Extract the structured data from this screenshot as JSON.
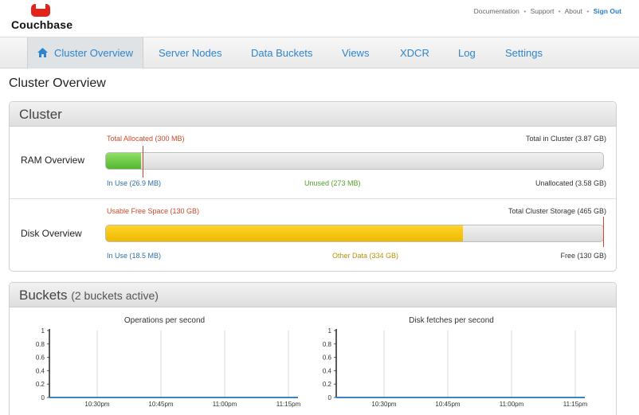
{
  "header": {
    "brand": "Couchbase",
    "links": [
      "Documentation",
      "Support",
      "About"
    ],
    "separator": "•",
    "sign_out": "Sign Out"
  },
  "nav": {
    "items": [
      "Cluster Overview",
      "Server Nodes",
      "Data Buckets",
      "Views",
      "XDCR",
      "Log",
      "Settings"
    ],
    "active": "Cluster Overview"
  },
  "page_title": "Cluster Overview",
  "cluster": {
    "title": "Cluster",
    "ram": {
      "label": "RAM Overview",
      "total_allocated": "Total Allocated (300 MB)",
      "total_in_cluster": "Total in Cluster (3.87 GB)",
      "in_use": "In Use (26.9 MB)",
      "unused": "Unused (273 MB)",
      "unallocated": "Unallocated (3.58 GB)",
      "in_use_fraction": 0.07,
      "allocated_fraction": 0.075
    },
    "disk": {
      "label": "Disk Overview",
      "usable_free": "Usable Free Space (130 GB)",
      "total_storage": "Total Cluster Storage (465 GB)",
      "in_use": "In Use (18.5 MB)",
      "other_data": "Other Data (334 GB)",
      "free": "Free (130 GB)",
      "used_fraction": 0.718,
      "marker_fraction": 0.998
    }
  },
  "buckets": {
    "title": "Buckets",
    "subtitle": "(2 buckets active)"
  },
  "colors": {
    "link": "#2f84cc",
    "ram_fill": "#55b62f",
    "disk_fill": "#f0b800",
    "marker": "#c84a2a",
    "series": "#3a83c4"
  },
  "chart_data": [
    {
      "type": "line",
      "title": "Operations per second",
      "x": [
        "10:30pm",
        "10:45pm",
        "11:00pm",
        "11:15pm"
      ],
      "series": [
        {
          "values": [
            0,
            0,
            0,
            0
          ]
        }
      ],
      "yticks": [
        "1",
        "0.8",
        "0.6",
        "0.4",
        "0.2",
        "0"
      ],
      "ylim": [
        0,
        1
      ],
      "grid": true
    },
    {
      "type": "line",
      "title": "Disk fetches per second",
      "x": [
        "10:30pm",
        "10:45pm",
        "11:00pm",
        "11:15pm"
      ],
      "series": [
        {
          "values": [
            0,
            0,
            0,
            0
          ]
        }
      ],
      "yticks": [
        "1",
        "0.8",
        "0.6",
        "0.4",
        "0.2",
        "0"
      ],
      "ylim": [
        0,
        1
      ],
      "grid": true
    }
  ]
}
